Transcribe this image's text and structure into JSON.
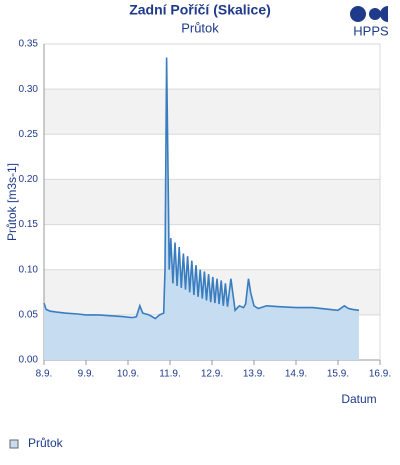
{
  "logo": "HPPS",
  "chart_data": {
    "type": "area",
    "title": "Zadní Poříčí (Skalice)",
    "subtitle": "Průtok",
    "y_label": "Průtok [m3s-1]",
    "x_label": "Datum",
    "x": [
      8.0,
      8.05,
      8.15,
      8.3,
      8.5,
      8.8,
      9.0,
      9.3,
      9.6,
      9.9,
      10.1,
      10.2,
      10.28,
      10.35,
      10.5,
      10.65,
      10.75,
      10.85,
      10.88,
      10.92,
      10.95,
      10.98,
      11.02,
      11.07,
      11.12,
      11.17,
      11.22,
      11.27,
      11.32,
      11.37,
      11.42,
      11.47,
      11.52,
      11.57,
      11.62,
      11.67,
      11.72,
      11.77,
      11.82,
      11.87,
      11.92,
      11.97,
      12.02,
      12.07,
      12.12,
      12.17,
      12.22,
      12.27,
      12.32,
      12.37,
      12.45,
      12.55,
      12.65,
      12.75,
      12.8,
      12.87,
      12.92,
      13.0,
      13.1,
      13.3,
      13.6,
      14.0,
      14.4,
      14.8,
      15.0,
      15.15,
      15.25,
      15.35,
      15.5
    ],
    "series": [
      {
        "name": "Průtok",
        "color": "#3a7dbf",
        "fill": "#c6dcf1",
        "values": [
          0.063,
          0.056,
          0.054,
          0.053,
          0.052,
          0.051,
          0.05,
          0.05,
          0.049,
          0.048,
          0.047,
          0.048,
          0.06,
          0.052,
          0.05,
          0.046,
          0.05,
          0.052,
          0.1,
          0.335,
          0.22,
          0.1,
          0.135,
          0.085,
          0.13,
          0.082,
          0.125,
          0.08,
          0.118,
          0.078,
          0.115,
          0.075,
          0.11,
          0.072,
          0.105,
          0.07,
          0.1,
          0.068,
          0.098,
          0.066,
          0.095,
          0.064,
          0.092,
          0.063,
          0.09,
          0.062,
          0.088,
          0.06,
          0.085,
          0.059,
          0.09,
          0.055,
          0.06,
          0.058,
          0.062,
          0.09,
          0.075,
          0.06,
          0.057,
          0.06,
          0.059,
          0.058,
          0.058,
          0.056,
          0.055,
          0.06,
          0.057,
          0.056,
          0.055
        ]
      }
    ],
    "xlim": [
      8,
      16
    ],
    "xticks": [
      {
        "value": 8,
        "label": "8.9."
      },
      {
        "value": 9,
        "label": "9.9."
      },
      {
        "value": 10,
        "label": "10.9."
      },
      {
        "value": 11,
        "label": "11.9."
      },
      {
        "value": 12,
        "label": "12.9."
      },
      {
        "value": 13,
        "label": "13.9."
      },
      {
        "value": 14,
        "label": "14.9."
      },
      {
        "value": 15,
        "label": "15.9."
      },
      {
        "value": 16,
        "label": "16.9."
      }
    ],
    "ylim": [
      0,
      0.35
    ],
    "yticks": [
      {
        "value": 0,
        "label": "0.00"
      },
      0.05,
      {
        "value": 0.1,
        "label": "0.10"
      },
      0.15,
      {
        "value": 0.2,
        "label": "0.20"
      },
      0.25,
      {
        "value": 0.3,
        "label": "0.30"
      },
      0.35
    ],
    "grid": true,
    "legend": "bottom-left"
  }
}
